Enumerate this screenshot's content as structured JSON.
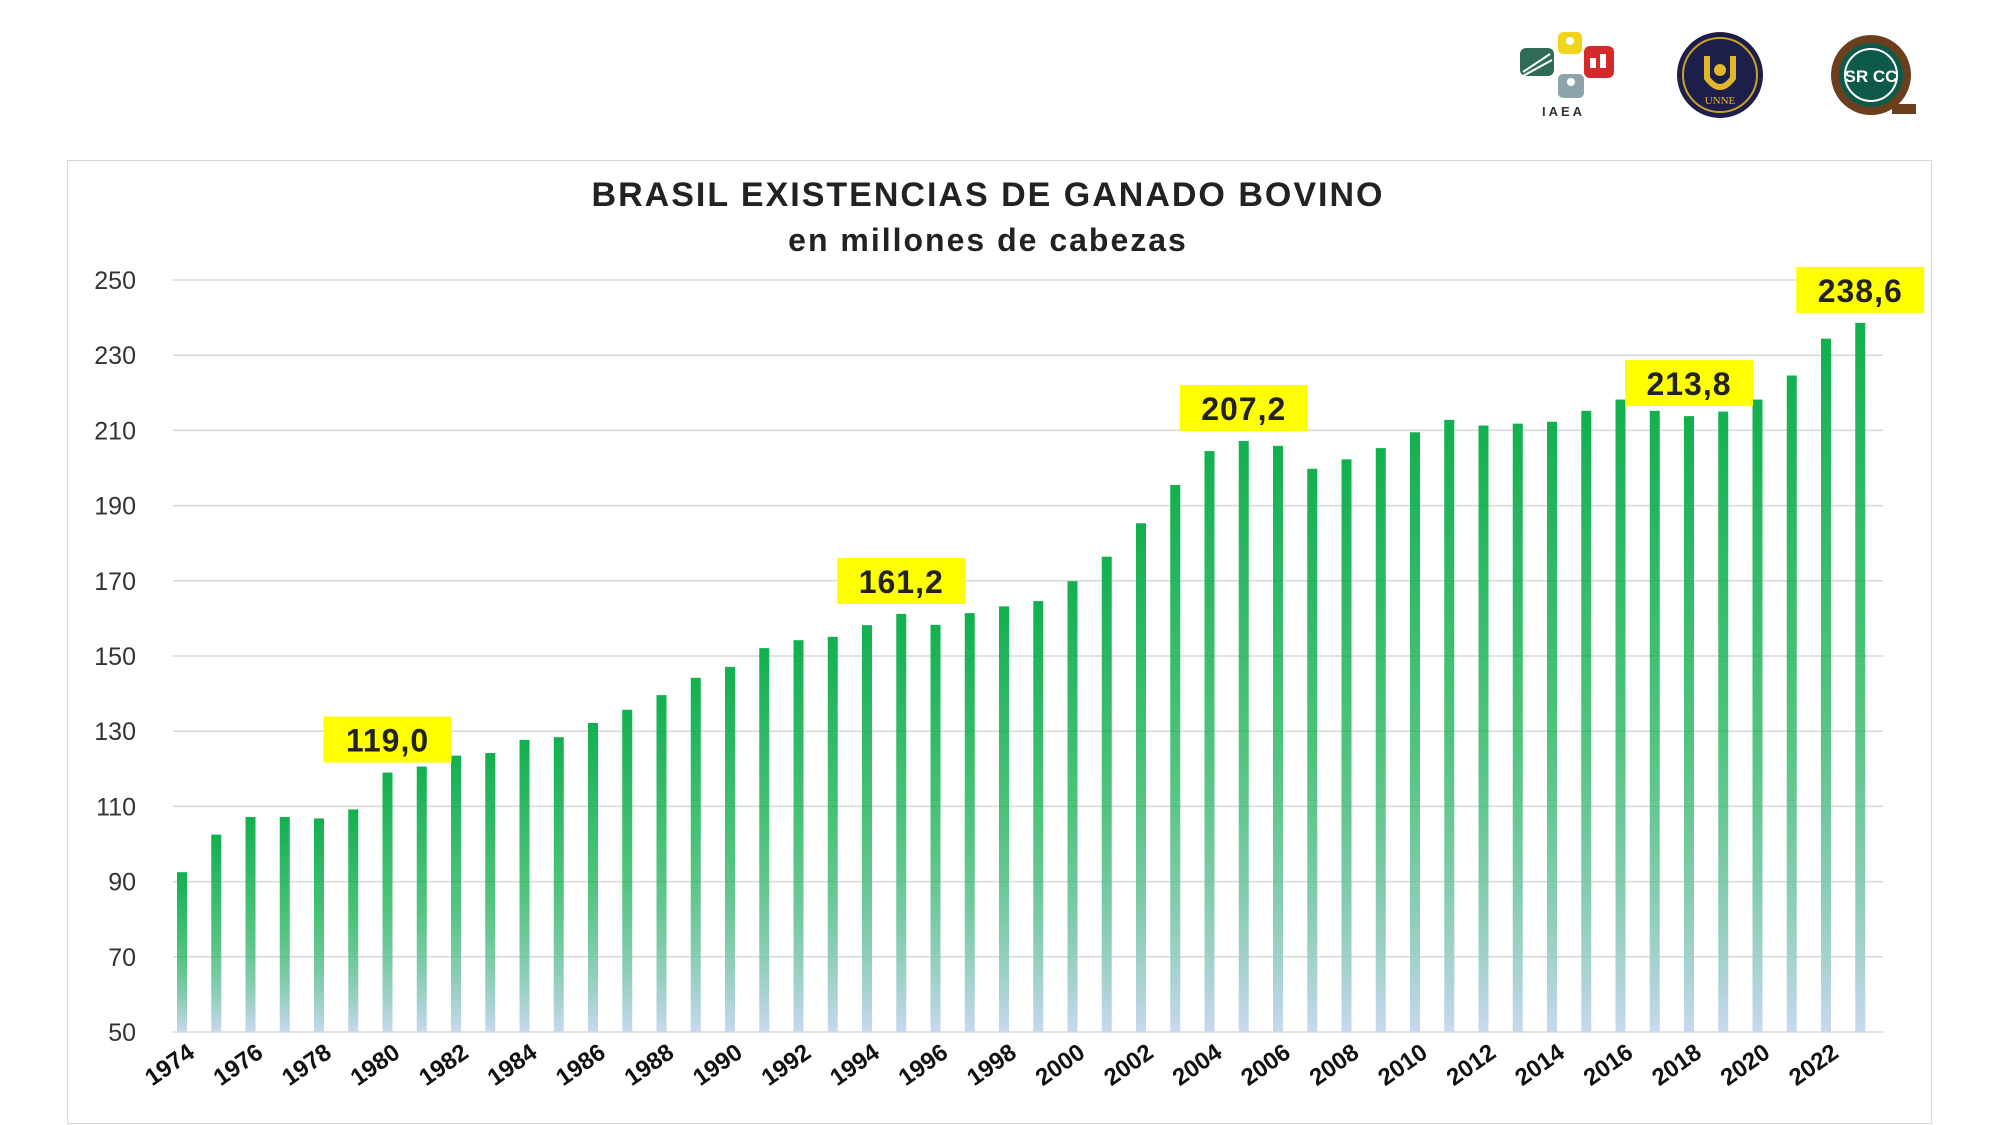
{
  "logos": [
    {
      "name": "iaea-logo",
      "text": "IAEA"
    },
    {
      "name": "unne-logo",
      "text": "UNNE"
    },
    {
      "name": "srcc-logo",
      "text": "SR CC"
    }
  ],
  "colors": {
    "bar_top": "#12b04f",
    "bar_bottom": "#c8d8ef",
    "highlight_bg": "#ffff00",
    "grid": "#d9d9d9"
  },
  "chart_data": {
    "type": "bar",
    "title": "BRASIL EXISTENCIAS DE GANADO BOVINO",
    "subtitle": "en millones de cabezas",
    "xlabel": "",
    "ylabel": "",
    "ylim": [
      50,
      250
    ],
    "yticks": [
      50,
      70,
      90,
      110,
      130,
      150,
      170,
      190,
      210,
      230,
      250
    ],
    "grid": true,
    "categories": [
      1974,
      1975,
      1976,
      1977,
      1978,
      1979,
      1980,
      1981,
      1982,
      1983,
      1984,
      1985,
      1986,
      1987,
      1988,
      1989,
      1990,
      1991,
      1992,
      1993,
      1994,
      1995,
      1996,
      1997,
      1998,
      1999,
      2000,
      2001,
      2002,
      2003,
      2004,
      2005,
      2006,
      2007,
      2008,
      2009,
      2010,
      2011,
      2012,
      2013,
      2014,
      2015,
      2016,
      2017,
      2018,
      2019,
      2020,
      2021,
      2022,
      2023
    ],
    "xtick_labels": [
      "1974",
      "1976",
      "1978",
      "1980",
      "1982",
      "1984",
      "1986",
      "1988",
      "1990",
      "1992",
      "1994",
      "1996",
      "1998",
      "2000",
      "2002",
      "2004",
      "2006",
      "2008",
      "2010",
      "2012",
      "2014",
      "2016",
      "2018",
      "2020",
      "2022"
    ],
    "values": [
      92.5,
      102.5,
      107.2,
      107.2,
      106.8,
      109.2,
      119.0,
      120.6,
      123.5,
      124.2,
      127.7,
      128.4,
      132.2,
      135.7,
      139.6,
      144.2,
      147.1,
      152.1,
      154.2,
      155.1,
      158.2,
      161.2,
      158.3,
      161.4,
      163.2,
      164.6,
      169.9,
      176.4,
      185.3,
      195.5,
      204.5,
      207.2,
      205.9,
      199.8,
      202.3,
      205.3,
      209.5,
      212.8,
      211.3,
      211.8,
      212.3,
      215.2,
      218.2,
      215.2,
      213.8,
      215.0,
      218.2,
      224.6,
      234.4,
      238.6
    ],
    "annotations": [
      {
        "x": 1980,
        "label": "119,0"
      },
      {
        "x": 1995,
        "label": "161,2"
      },
      {
        "x": 2005,
        "label": "207,2"
      },
      {
        "x": 2018,
        "label": "213,8"
      },
      {
        "x": 2023,
        "label": "238,6"
      }
    ]
  }
}
